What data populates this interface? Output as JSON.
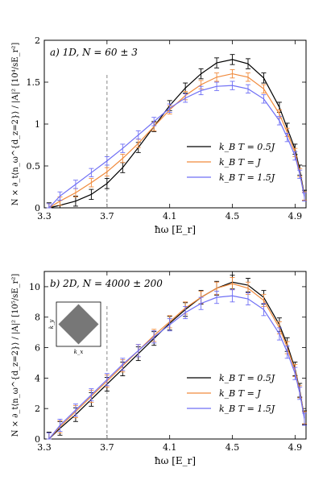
{
  "chart_data": [
    {
      "type": "line",
      "panel_label": "a) 1D, N = 60 ± 3",
      "xlabel": "ħω [E_r]",
      "ylabel": "N × ∂_t⟨n_ω^{d_z=2}⟩ / |A|² [10⁴/sE_r²]",
      "xlim": [
        3.3,
        4.97
      ],
      "ylim": [
        0,
        2
      ],
      "xticks": [
        "3.3",
        "3.7",
        "4.1",
        "4.5",
        "4.9"
      ],
      "yticks": [
        "0",
        "0.5",
        "1",
        "1.5",
        "2"
      ],
      "vline_x": 3.7,
      "legend_position": "lower-right",
      "series": [
        {
          "name": "k_B T = 0.5J",
          "color": "#000000",
          "x": [
            3.33,
            3.4,
            3.5,
            3.6,
            3.7,
            3.8,
            3.9,
            4.0,
            4.1,
            4.2,
            4.3,
            4.4,
            4.5,
            4.6,
            4.7,
            4.8,
            4.85,
            4.9,
            4.93,
            4.96
          ],
          "y": [
            0.0,
            0.03,
            0.08,
            0.16,
            0.29,
            0.48,
            0.72,
            0.97,
            1.22,
            1.43,
            1.6,
            1.73,
            1.77,
            1.72,
            1.55,
            1.2,
            0.95,
            0.7,
            0.45,
            0.15
          ],
          "err": 0.06
        },
        {
          "name": "k_B T = J",
          "color": "#f08a3c",
          "x": [
            3.33,
            3.4,
            3.5,
            3.6,
            3.7,
            3.8,
            3.9,
            4.0,
            4.1,
            4.2,
            4.3,
            4.4,
            4.5,
            4.6,
            4.7,
            4.8,
            4.85,
            4.9,
            4.93,
            4.96
          ],
          "y": [
            0.0,
            0.08,
            0.18,
            0.3,
            0.43,
            0.59,
            0.77,
            0.97,
            1.17,
            1.34,
            1.47,
            1.56,
            1.6,
            1.56,
            1.42,
            1.12,
            0.9,
            0.66,
            0.42,
            0.14
          ],
          "err": 0.05
        },
        {
          "name": "k_B T = 1.5J",
          "color": "#6f6ff5",
          "x": [
            3.33,
            3.4,
            3.5,
            3.6,
            3.7,
            3.8,
            3.9,
            4.0,
            4.1,
            4.2,
            4.3,
            4.4,
            4.5,
            4.6,
            4.7,
            4.8,
            4.85,
            4.9,
            4.93,
            4.96
          ],
          "y": [
            0.0,
            0.14,
            0.28,
            0.42,
            0.56,
            0.71,
            0.87,
            1.03,
            1.19,
            1.31,
            1.4,
            1.45,
            1.46,
            1.42,
            1.3,
            1.04,
            0.84,
            0.62,
            0.4,
            0.13
          ],
          "err": 0.05
        }
      ]
    },
    {
      "type": "line",
      "panel_label": "b) 2D, N = 4000 ± 200",
      "xlabel": "ħω [E_r]",
      "ylabel": "N × ∂_t⟨n_ω^{d_z=2}⟩ / |A|² [10⁵/sE_r²]",
      "xlim": [
        3.3,
        4.97
      ],
      "ylim": [
        0,
        11
      ],
      "xticks": [
        "3.3",
        "3.7",
        "4.1",
        "4.5",
        "4.9"
      ],
      "yticks": [
        "0",
        "2",
        "4",
        "6",
        "8",
        "10"
      ],
      "vline_x": 3.7,
      "legend_position": "lower-right",
      "inset": {
        "xlabel": "k_x",
        "ylabel": "k_y"
      },
      "series": [
        {
          "name": "k_B T = 0.5J",
          "color": "#000000",
          "x": [
            3.33,
            3.4,
            3.5,
            3.6,
            3.7,
            3.8,
            3.9,
            4.0,
            4.1,
            4.2,
            4.3,
            4.4,
            4.5,
            4.6,
            4.7,
            4.8,
            4.85,
            4.9,
            4.93,
            4.96
          ],
          "y": [
            0.0,
            0.7,
            1.6,
            2.6,
            3.6,
            4.6,
            5.6,
            6.6,
            7.6,
            8.5,
            9.3,
            9.9,
            10.3,
            10.1,
            9.3,
            7.5,
            6.2,
            4.6,
            3.2,
            1.4
          ],
          "err": 0.45
        },
        {
          "name": "k_B T = J",
          "color": "#f08a3c",
          "x": [
            3.33,
            3.4,
            3.5,
            3.6,
            3.7,
            3.8,
            3.9,
            4.0,
            4.1,
            4.2,
            4.3,
            4.4,
            4.5,
            4.6,
            4.7,
            4.8,
            4.85,
            4.9,
            4.93,
            4.96
          ],
          "y": [
            0.0,
            0.8,
            1.8,
            2.8,
            3.8,
            4.8,
            5.8,
            6.8,
            7.7,
            8.6,
            9.3,
            9.9,
            10.2,
            9.9,
            9.1,
            7.3,
            6.0,
            4.5,
            3.1,
            1.4
          ],
          "err": 0.4
        },
        {
          "name": "k_B T = 1.5J",
          "color": "#6f6ff5",
          "x": [
            3.33,
            3.4,
            3.5,
            3.6,
            3.7,
            3.8,
            3.9,
            4.0,
            4.1,
            4.2,
            4.3,
            4.4,
            4.5,
            4.6,
            4.7,
            4.8,
            4.85,
            4.9,
            4.93,
            4.96
          ],
          "y": [
            0.0,
            0.9,
            1.9,
            2.9,
            3.9,
            4.9,
            5.8,
            6.7,
            7.5,
            8.3,
            8.9,
            9.3,
            9.4,
            9.2,
            8.5,
            6.9,
            5.7,
            4.3,
            3.0,
            1.3
          ],
          "err": 0.4
        }
      ]
    }
  ]
}
